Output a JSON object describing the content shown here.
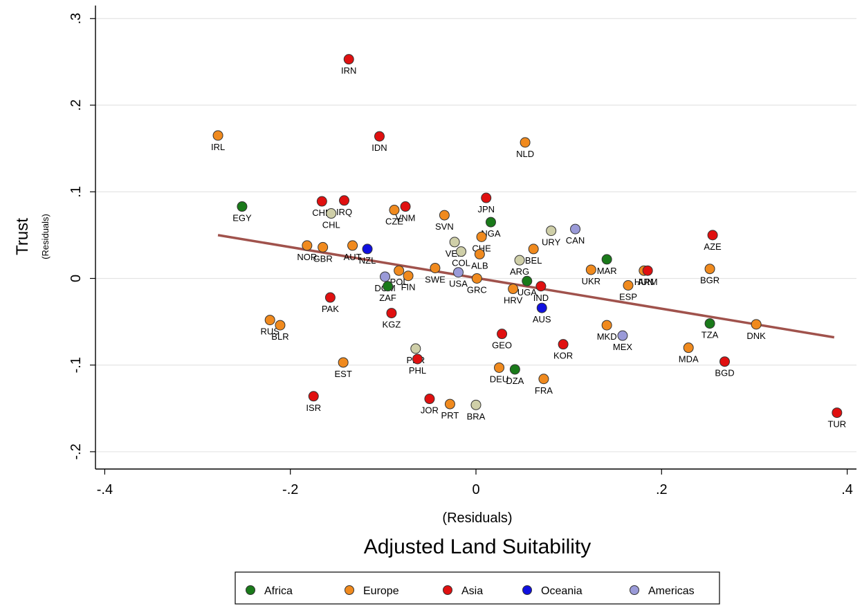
{
  "chart_data": {
    "type": "scatter",
    "xlabel_sub": "(Residuals)",
    "xlabel": "Adjusted Land Suitability",
    "ylabel": "Trust",
    "ylabel_sub": "(Residuals)",
    "xlim": [
      -0.41,
      0.41
    ],
    "ylim": [
      -0.22,
      0.315
    ],
    "x_ticks": [
      -0.4,
      -0.2,
      0,
      0.2,
      0.4
    ],
    "x_tick_labels": [
      "-.4",
      "-.2",
      "0",
      ".2",
      ".4"
    ],
    "y_ticks": [
      -0.2,
      -0.1,
      0,
      0.1,
      0.2,
      0.3
    ],
    "y_tick_labels": [
      "-.2",
      "-.1",
      "0",
      ".1",
      ".2",
      ".3"
    ],
    "grid": "horizontal",
    "legend_position": "bottom",
    "fit_line": {
      "x": [
        -0.278,
        0.386
      ],
      "y": [
        0.05,
        -0.068
      ],
      "color": "#a0524c"
    },
    "groups": [
      {
        "name": "Africa",
        "color": "#1a7a1a"
      },
      {
        "name": "Europe",
        "color": "#f08a1e"
      },
      {
        "name": "Asia",
        "color": "#e01010"
      },
      {
        "name": "Oceania",
        "color": "#1010e0"
      },
      {
        "name": "Americas",
        "color": "#9a9ad8"
      }
    ],
    "other_color": "#cfcfa8",
    "points": [
      {
        "label": "IRN",
        "x": -0.137,
        "y": 0.253,
        "group": "Asia"
      },
      {
        "label": "IRL",
        "x": -0.278,
        "y": 0.165,
        "group": "Europe"
      },
      {
        "label": "IDN",
        "x": -0.104,
        "y": 0.164,
        "group": "Asia"
      },
      {
        "label": "NLD",
        "x": 0.053,
        "y": 0.157,
        "group": "Europe"
      },
      {
        "label": "EGY",
        "x": -0.252,
        "y": 0.083,
        "group": "Africa"
      },
      {
        "label": "CHN",
        "x": -0.166,
        "y": 0.089,
        "group": "Asia"
      },
      {
        "label": "IRQ",
        "x": -0.142,
        "y": 0.09,
        "group": "Asia"
      },
      {
        "label": "CHL",
        "x": -0.156,
        "y": 0.075,
        "group": "Other"
      },
      {
        "label": "CZE",
        "x": -0.088,
        "y": 0.079,
        "group": "Europe"
      },
      {
        "label": "VNM",
        "x": -0.076,
        "y": 0.083,
        "group": "Asia"
      },
      {
        "label": "SVN",
        "x": -0.034,
        "y": 0.073,
        "group": "Europe"
      },
      {
        "label": "JPN",
        "x": 0.011,
        "y": 0.093,
        "group": "Asia"
      },
      {
        "label": "NGA",
        "x": 0.016,
        "y": 0.065,
        "group": "Africa"
      },
      {
        "label": "CHE",
        "x": 0.006,
        "y": 0.048,
        "group": "Europe"
      },
      {
        "label": "VEN",
        "x": -0.023,
        "y": 0.042,
        "group": "Other"
      },
      {
        "label": "COL",
        "x": -0.016,
        "y": 0.031,
        "group": "Other"
      },
      {
        "label": "ALB",
        "x": 0.004,
        "y": 0.028,
        "group": "Europe"
      },
      {
        "label": "URY",
        "x": 0.081,
        "y": 0.055,
        "group": "Other"
      },
      {
        "label": "CAN",
        "x": 0.107,
        "y": 0.057,
        "group": "Americas"
      },
      {
        "label": "BEL",
        "x": 0.062,
        "y": 0.034,
        "group": "Europe"
      },
      {
        "label": "ARG",
        "x": 0.047,
        "y": 0.021,
        "group": "Other"
      },
      {
        "label": "NOR",
        "x": -0.182,
        "y": 0.038,
        "group": "Europe"
      },
      {
        "label": "GBR",
        "x": -0.165,
        "y": 0.036,
        "group": "Europe"
      },
      {
        "label": "AUT",
        "x": -0.133,
        "y": 0.038,
        "group": "Europe"
      },
      {
        "label": "NZL",
        "x": -0.117,
        "y": 0.034,
        "group": "Oceania"
      },
      {
        "label": "POL",
        "x": -0.083,
        "y": 0.009,
        "group": "Europe"
      },
      {
        "label": "FIN",
        "x": -0.073,
        "y": 0.003,
        "group": "Europe"
      },
      {
        "label": "DOM",
        "x": -0.098,
        "y": 0.002,
        "group": "Americas"
      },
      {
        "label": "ZAF",
        "x": -0.095,
        "y": -0.009,
        "group": "Africa"
      },
      {
        "label": "SWE",
        "x": -0.044,
        "y": 0.012,
        "group": "Europe"
      },
      {
        "label": "USA",
        "x": -0.019,
        "y": 0.007,
        "group": "Americas"
      },
      {
        "label": "GRC",
        "x": 0.001,
        "y": 0.0,
        "group": "Europe"
      },
      {
        "label": "UGA",
        "x": 0.055,
        "y": -0.003,
        "group": "Africa"
      },
      {
        "label": "HRV",
        "x": 0.04,
        "y": -0.012,
        "group": "Europe"
      },
      {
        "label": "IND",
        "x": 0.07,
        "y": -0.009,
        "group": "Asia"
      },
      {
        "label": "MAR",
        "x": 0.141,
        "y": 0.022,
        "group": "Africa"
      },
      {
        "label": "UKR",
        "x": 0.124,
        "y": 0.01,
        "group": "Europe"
      },
      {
        "label": "HUN",
        "x": 0.181,
        "y": 0.009,
        "group": "Europe"
      },
      {
        "label": "ARM",
        "x": 0.185,
        "y": 0.009,
        "group": "Asia"
      },
      {
        "label": "ESP",
        "x": 0.164,
        "y": -0.008,
        "group": "Europe"
      },
      {
        "label": "AZE",
        "x": 0.255,
        "y": 0.05,
        "group": "Asia"
      },
      {
        "label": "BGR",
        "x": 0.252,
        "y": 0.011,
        "group": "Europe"
      },
      {
        "label": "PAK",
        "x": -0.157,
        "y": -0.022,
        "group": "Asia"
      },
      {
        "label": "KGZ",
        "x": -0.091,
        "y": -0.04,
        "group": "Asia"
      },
      {
        "label": "AUS",
        "x": 0.071,
        "y": -0.034,
        "group": "Oceania"
      },
      {
        "label": "RUS",
        "x": -0.222,
        "y": -0.048,
        "group": "Europe"
      },
      {
        "label": "BLR",
        "x": -0.211,
        "y": -0.054,
        "group": "Europe"
      },
      {
        "label": "GEO",
        "x": 0.028,
        "y": -0.064,
        "group": "Asia"
      },
      {
        "label": "KOR",
        "x": 0.094,
        "y": -0.076,
        "group": "Asia"
      },
      {
        "label": "MKD",
        "x": 0.141,
        "y": -0.054,
        "group": "Europe"
      },
      {
        "label": "MEX",
        "x": 0.158,
        "y": -0.066,
        "group": "Americas"
      },
      {
        "label": "TZA",
        "x": 0.252,
        "y": -0.052,
        "group": "Africa"
      },
      {
        "label": "DNK",
        "x": 0.302,
        "y": -0.053,
        "group": "Europe"
      },
      {
        "label": "MDA",
        "x": 0.229,
        "y": -0.08,
        "group": "Europe"
      },
      {
        "label": "BGD",
        "x": 0.268,
        "y": -0.096,
        "group": "Asia"
      },
      {
        "label": "PER",
        "x": -0.065,
        "y": -0.081,
        "group": "Other"
      },
      {
        "label": "PHL",
        "x": -0.063,
        "y": -0.093,
        "group": "Asia"
      },
      {
        "label": "EST",
        "x": -0.143,
        "y": -0.097,
        "group": "Europe"
      },
      {
        "label": "DEU",
        "x": 0.025,
        "y": -0.103,
        "group": "Europe"
      },
      {
        "label": "DZA",
        "x": 0.042,
        "y": -0.105,
        "group": "Africa"
      },
      {
        "label": "FRA",
        "x": 0.073,
        "y": -0.116,
        "group": "Europe"
      },
      {
        "label": "ISR",
        "x": -0.175,
        "y": -0.136,
        "group": "Asia"
      },
      {
        "label": "JOR",
        "x": -0.05,
        "y": -0.139,
        "group": "Asia"
      },
      {
        "label": "PRT",
        "x": -0.028,
        "y": -0.145,
        "group": "Europe"
      },
      {
        "label": "BRA",
        "x": 0.0,
        "y": -0.146,
        "group": "Other"
      },
      {
        "label": "TUR",
        "x": 0.389,
        "y": -0.155,
        "group": "Asia"
      }
    ]
  }
}
